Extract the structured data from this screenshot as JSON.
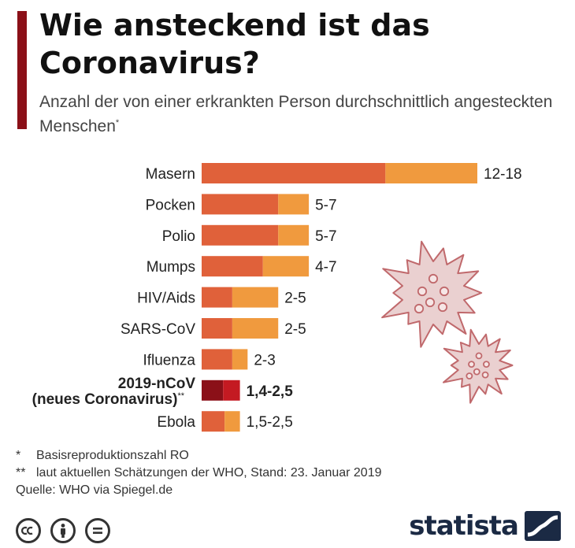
{
  "title": "Wie ansteckend ist das Coronavirus?",
  "subtitle": "Anzahl der von einer erkrankten Person durchschnittlich angesteckten Menschen",
  "subtitle_mark": "*",
  "colors": {
    "accent": "#8b1018",
    "low": "#e0613a",
    "high": "#f09a3e",
    "highlight_low": "#8b1018",
    "highlight_high": "#c41a22",
    "virus": "#c0696c",
    "virus_fill": "#ead0d0"
  },
  "chart_data": {
    "type": "bar",
    "orientation": "horizontal",
    "stacked": true,
    "categories": [
      "Masern",
      "Pocken",
      "Polio",
      "Mumps",
      "HIV/Aids",
      "SARS-CoV",
      "Ifluenza",
      "2019-nCoV (neues Coronavirus)",
      "Ebola"
    ],
    "category_lines": [
      [
        "Masern"
      ],
      [
        "Pocken"
      ],
      [
        "Polio"
      ],
      [
        "Mumps"
      ],
      [
        "HIV/Aids"
      ],
      [
        "SARS-CoV"
      ],
      [
        "Ifluenza"
      ],
      [
        "2019-nCoV",
        "(neues Coronavirus)"
      ],
      [
        "Ebola"
      ]
    ],
    "category_marks": [
      "",
      "",
      "",
      "",
      "",
      "",
      "",
      "**",
      ""
    ],
    "low": [
      12,
      5,
      5,
      4,
      2,
      2,
      2,
      1.4,
      1.5
    ],
    "high": [
      18,
      7,
      7,
      7,
      5,
      5,
      3,
      2.5,
      2.5
    ],
    "value_labels": [
      "12-18",
      "5-7",
      "5-7",
      "4-7",
      "2-5",
      "2-5",
      "2-3",
      "1,4-2,5",
      "1,5-2,5"
    ],
    "highlight_index": 7,
    "xlim": [
      0,
      18
    ],
    "grid": false,
    "legend": "none"
  },
  "notes": [
    {
      "mark": "*",
      "text": "Basisreproduktionszahl RO"
    },
    {
      "mark": "**",
      "text": "laut aktuellen Schätzungen der WHO, Stand: 23. Januar 2019"
    },
    {
      "mark": "",
      "text": "Quelle: WHO via Spiegel.de"
    }
  ],
  "license_icons": [
    "creative-commons-icon",
    "attribution-icon",
    "no-derivatives-icon"
  ],
  "brand": {
    "name": "statista",
    "logo_icon": "statista-logo-icon"
  }
}
